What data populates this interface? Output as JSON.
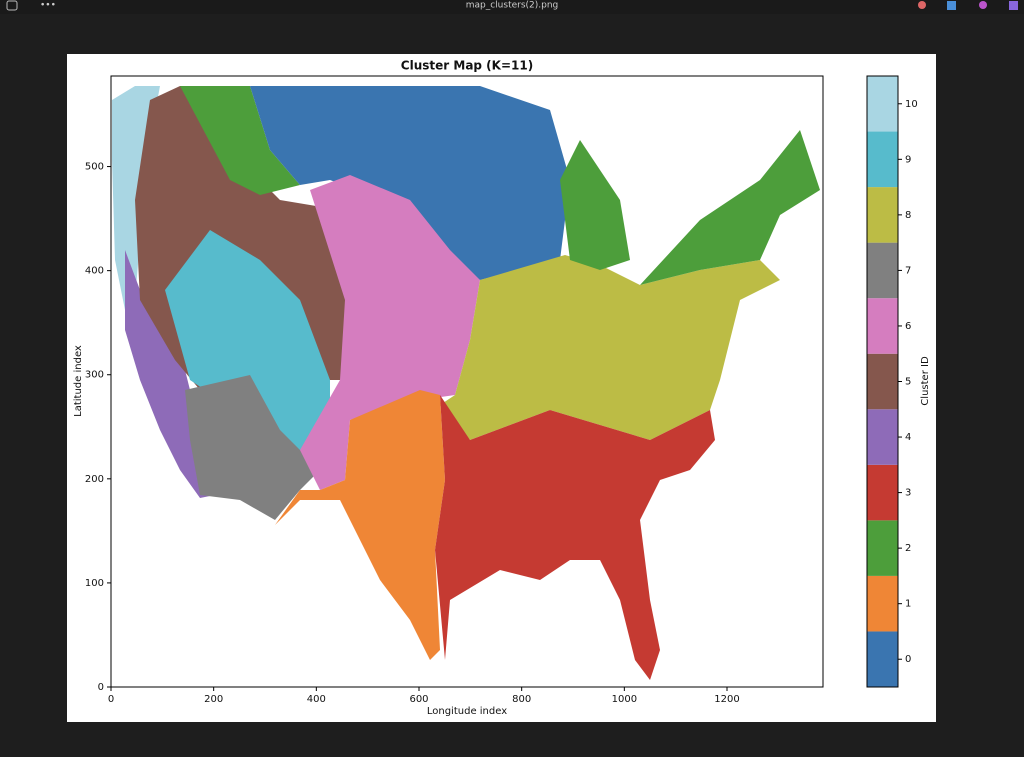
{
  "window": {
    "title": "map_clusters(2).png"
  },
  "chart_data": {
    "type": "cluster-map",
    "title": "Cluster Map (K=11)",
    "xlabel": "Longitude index",
    "ylabel": "Latitude index",
    "xlim": [
      0,
      1387
    ],
    "ylim": [
      0,
      587
    ],
    "xticks": [
      0,
      200,
      400,
      600,
      800,
      1000,
      1200
    ],
    "yticks": [
      0,
      100,
      200,
      300,
      400,
      500
    ],
    "regions": [
      10,
      4,
      5,
      9,
      7,
      2,
      0,
      6,
      8,
      2,
      2,
      1,
      3
    ],
    "colorbar": {
      "label": "Cluster ID",
      "clim": [
        -0.5,
        10.5
      ],
      "ticks": [
        0,
        1,
        2,
        3,
        4,
        5,
        6,
        7,
        8,
        9,
        10
      ],
      "colors": [
        "#3a75b0",
        "#ef8636",
        "#4d9e3b",
        "#c53a32",
        "#8e6bb8",
        "#85574d",
        "#d57dbf",
        "#808080",
        "#bcbc45",
        "#57bbcc",
        "#a9d6e3"
      ]
    }
  }
}
